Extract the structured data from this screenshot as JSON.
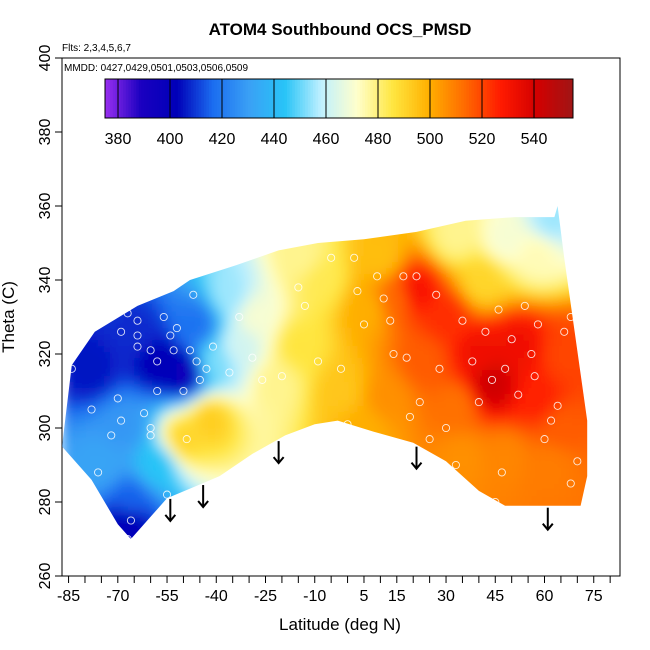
{
  "chart_data": {
    "type": "heatmap",
    "title": "ATOM4 Southbound OCS_PMSD",
    "annotations": [
      "Flts: 2,3,4,5,6,7",
      "MMDD: 0427,0429,0501,0503,0506,0509"
    ],
    "xlabel": "Latitude (deg N)",
    "ylabel": "Theta (C)",
    "xlim": [
      -87,
      83
    ],
    "ylim": [
      260,
      400
    ],
    "x_ticks": [
      -85,
      -70,
      -55,
      -40,
      -25,
      -10,
      5,
      15,
      30,
      45,
      60,
      75
    ],
    "y_ticks": [
      260,
      280,
      300,
      320,
      340,
      360,
      380,
      400
    ],
    "colorbar": {
      "range": [
        375,
        555
      ],
      "ticks": [
        380,
        400,
        420,
        440,
        460,
        480,
        500,
        520,
        540
      ],
      "colors": [
        "#9a2ff0",
        "#1a00c0",
        "#0000b8",
        "#1b6df0",
        "#3aa0f5",
        "#28c4f7",
        "#bff0ff",
        "#ffffcc",
        "#ffe640",
        "#ffb000",
        "#ff6a00",
        "#ff1a00",
        "#d20000",
        "#a01515"
      ]
    },
    "arrows_latitude": [
      -54,
      -44,
      -21,
      21,
      61
    ],
    "domain_outline": [
      [
        -87,
        295
      ],
      [
        -84,
        317
      ],
      [
        -77,
        326
      ],
      [
        -64,
        333
      ],
      [
        -53,
        337
      ],
      [
        -48,
        340
      ],
      [
        -34,
        344
      ],
      [
        -21,
        348
      ],
      [
        -9,
        350
      ],
      [
        5,
        351
      ],
      [
        21,
        353
      ],
      [
        36,
        356
      ],
      [
        51,
        357
      ],
      [
        63,
        357
      ],
      [
        64,
        360
      ],
      [
        66,
        346
      ],
      [
        73,
        302
      ],
      [
        73,
        287
      ],
      [
        71,
        279
      ],
      [
        57,
        279
      ],
      [
        48,
        279
      ],
      [
        40,
        283
      ],
      [
        30,
        291
      ],
      [
        20,
        296
      ],
      [
        8,
        299
      ],
      [
        -3,
        302
      ],
      [
        -10,
        301
      ],
      [
        -19,
        298
      ],
      [
        -29,
        293
      ],
      [
        -39,
        287
      ],
      [
        -47,
        284
      ],
      [
        -55,
        281
      ],
      [
        -60,
        276
      ],
      [
        -66,
        270
      ],
      [
        -70,
        274
      ],
      [
        -78,
        286
      ]
    ],
    "value_regions": [
      {
        "lat": -78,
        "theta": 316,
        "value": 405
      },
      {
        "lat": -64,
        "theta": 325,
        "value": 408
      },
      {
        "lat": -58,
        "theta": 318,
        "value": 402
      },
      {
        "lat": -50,
        "theta": 315,
        "value": 398
      },
      {
        "lat": -46,
        "theta": 328,
        "value": 418
      },
      {
        "lat": -68,
        "theta": 300,
        "value": 428
      },
      {
        "lat": -75,
        "theta": 290,
        "value": 432
      },
      {
        "lat": -66,
        "theta": 280,
        "value": 415
      },
      {
        "lat": -67,
        "theta": 274,
        "value": 400
      },
      {
        "lat": -58,
        "theta": 290,
        "value": 444
      },
      {
        "lat": -50,
        "theta": 297,
        "value": 490
      },
      {
        "lat": -42,
        "theta": 302,
        "value": 492
      },
      {
        "lat": -40,
        "theta": 318,
        "value": 452
      },
      {
        "lat": -33,
        "theta": 322,
        "value": 462
      },
      {
        "lat": -36,
        "theta": 336,
        "value": 455
      },
      {
        "lat": -28,
        "theta": 330,
        "value": 470
      },
      {
        "lat": -22,
        "theta": 312,
        "value": 478
      },
      {
        "lat": -15,
        "theta": 322,
        "value": 486
      },
      {
        "lat": -8,
        "theta": 340,
        "value": 484
      },
      {
        "lat": -2,
        "theta": 310,
        "value": 494
      },
      {
        "lat": 6,
        "theta": 332,
        "value": 500
      },
      {
        "lat": 12,
        "theta": 308,
        "value": 506
      },
      {
        "lat": 15,
        "theta": 335,
        "value": 514
      },
      {
        "lat": 21,
        "theta": 337,
        "value": 530
      },
      {
        "lat": 23,
        "theta": 318,
        "value": 516
      },
      {
        "lat": 30,
        "theta": 330,
        "value": 524
      },
      {
        "lat": 33,
        "theta": 306,
        "value": 512
      },
      {
        "lat": 40,
        "theta": 320,
        "value": 532
      },
      {
        "lat": 44,
        "theta": 312,
        "value": 542
      },
      {
        "lat": 52,
        "theta": 322,
        "value": 532
      },
      {
        "lat": 58,
        "theta": 308,
        "value": 526
      },
      {
        "lat": 48,
        "theta": 292,
        "value": 508
      },
      {
        "lat": 62,
        "theta": 290,
        "value": 510
      },
      {
        "lat": 66,
        "theta": 320,
        "value": 520
      },
      {
        "lat": 65,
        "theta": 300,
        "value": 516
      },
      {
        "lat": 33,
        "theta": 352,
        "value": 478
      },
      {
        "lat": 48,
        "theta": 351,
        "value": 470
      },
      {
        "lat": 58,
        "theta": 347,
        "value": 474
      },
      {
        "lat": 62,
        "theta": 356,
        "value": 455
      },
      {
        "lat": 41,
        "theta": 340,
        "value": 490
      },
      {
        "lat": 10,
        "theta": 346,
        "value": 496
      },
      {
        "lat": -14,
        "theta": 346,
        "value": 478
      },
      {
        "lat": 35,
        "theta": 292,
        "value": 506
      },
      {
        "lat": 5,
        "theta": 300,
        "value": 500
      }
    ],
    "sample_points": [
      [
        -84,
        316
      ],
      [
        -78,
        305
      ],
      [
        -76,
        288
      ],
      [
        -72,
        298
      ],
      [
        -70,
        308
      ],
      [
        -69,
        302
      ],
      [
        -69,
        326
      ],
      [
        -67,
        331
      ],
      [
        -66,
        275
      ],
      [
        -64,
        329
      ],
      [
        -64,
        325
      ],
      [
        -62,
        304
      ],
      [
        -60,
        298
      ],
      [
        -60,
        321
      ],
      [
        -60,
        300
      ],
      [
        -58,
        318
      ],
      [
        -58,
        310
      ],
      [
        -56,
        330
      ],
      [
        -55,
        282
      ],
      [
        -54,
        325
      ],
      [
        -53,
        321
      ],
      [
        -52,
        327
      ],
      [
        -50,
        310
      ],
      [
        -49,
        297
      ],
      [
        -48,
        321
      ],
      [
        -47,
        336
      ],
      [
        -46,
        318
      ],
      [
        -45,
        313
      ],
      [
        -43,
        316
      ],
      [
        -41,
        322
      ],
      [
        -36,
        315
      ],
      [
        -33,
        330
      ],
      [
        -29,
        319
      ],
      [
        -26,
        313
      ],
      [
        -20,
        314
      ],
      [
        -15,
        338
      ],
      [
        -13,
        333
      ],
      [
        -9,
        318
      ],
      [
        -5,
        346
      ],
      [
        -2,
        316
      ],
      [
        0,
        301
      ],
      [
        2,
        346
      ],
      [
        3,
        337
      ],
      [
        5,
        328
      ],
      [
        9,
        341
      ],
      [
        11,
        335
      ],
      [
        13,
        329
      ],
      [
        14,
        320
      ],
      [
        17,
        341
      ],
      [
        18,
        319
      ],
      [
        19,
        303
      ],
      [
        21,
        341
      ],
      [
        22,
        307
      ],
      [
        25,
        297
      ],
      [
        27,
        336
      ],
      [
        28,
        316
      ],
      [
        30,
        300
      ],
      [
        33,
        290
      ],
      [
        35,
        329
      ],
      [
        38,
        318
      ],
      [
        40,
        307
      ],
      [
        42,
        326
      ],
      [
        44,
        313
      ],
      [
        46,
        332
      ],
      [
        48,
        316
      ],
      [
        50,
        324
      ],
      [
        52,
        309
      ],
      [
        54,
        333
      ],
      [
        56,
        320
      ],
      [
        57,
        314
      ],
      [
        58,
        328
      ],
      [
        60,
        297
      ],
      [
        62,
        302
      ],
      [
        64,
        306
      ],
      [
        66,
        326
      ],
      [
        68,
        330
      ],
      [
        70,
        291
      ],
      [
        45,
        280
      ],
      [
        47,
        288
      ],
      [
        68,
        285
      ],
      [
        -67,
        270
      ],
      [
        -64,
        322
      ]
    ]
  }
}
